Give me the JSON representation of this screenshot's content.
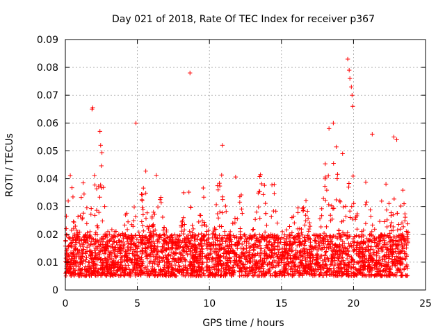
{
  "chart_data": {
    "type": "scatter",
    "title": "Day 021 of 2018, Rate Of TEC Index for receiver p367",
    "xlabel": "GPS time / hours",
    "ylabel": "ROTI / TECUs",
    "xlim": [
      0,
      25
    ],
    "ylim": [
      0,
      0.09
    ],
    "xticks": [
      0,
      5,
      10,
      15,
      20,
      25
    ],
    "xtick_labels": [
      "0",
      "5",
      "10",
      "15",
      "20",
      "25"
    ],
    "yticks": [
      0,
      0.01,
      0.02,
      0.03,
      0.04,
      0.05,
      0.06,
      0.07,
      0.08,
      0.09
    ],
    "ytick_labels": [
      "0",
      "0.01",
      "0.02",
      "0.03",
      "0.04",
      "0.05",
      "0.06",
      "0.07",
      "0.08",
      "0.09"
    ],
    "grid": true,
    "marker": "+",
    "series_color": "#ff0000",
    "x_data_range": [
      0,
      23.8
    ],
    "baseline_band": [
      0.005,
      0.02
    ],
    "activity_peaks": [
      {
        "x": 0.3,
        "peak": 0.044
      },
      {
        "x": 1.2,
        "peak": 0.041
      },
      {
        "x": 1.9,
        "peak": 0.045
      },
      {
        "x": 2.4,
        "peak": 0.057
      },
      {
        "x": 4.5,
        "peak": 0.047
      },
      {
        "x": 5.5,
        "peak": 0.046
      },
      {
        "x": 6.4,
        "peak": 0.045
      },
      {
        "x": 8.4,
        "peak": 0.044
      },
      {
        "x": 9.5,
        "peak": 0.04
      },
      {
        "x": 10.8,
        "peak": 0.052
      },
      {
        "x": 12.0,
        "peak": 0.048
      },
      {
        "x": 13.6,
        "peak": 0.05
      },
      {
        "x": 14.5,
        "peak": 0.043
      },
      {
        "x": 15.9,
        "peak": 0.041
      },
      {
        "x": 16.6,
        "peak": 0.035
      },
      {
        "x": 18.1,
        "peak": 0.053
      },
      {
        "x": 18.8,
        "peak": 0.055
      },
      {
        "x": 19.3,
        "peak": 0.051
      },
      {
        "x": 19.9,
        "peak": 0.048
      },
      {
        "x": 21.0,
        "peak": 0.045
      },
      {
        "x": 22.2,
        "peak": 0.044
      },
      {
        "x": 22.8,
        "peak": 0.035
      },
      {
        "x": 23.5,
        "peak": 0.038
      }
    ],
    "outliers": [
      {
        "x": 1.85,
        "y": 0.065
      },
      {
        "x": 1.9,
        "y": 0.0655
      },
      {
        "x": 2.4,
        "y": 0.057
      },
      {
        "x": 2.45,
        "y": 0.052
      },
      {
        "x": 4.9,
        "y": 0.06
      },
      {
        "x": 8.65,
        "y": 0.078
      },
      {
        "x": 19.6,
        "y": 0.083
      },
      {
        "x": 19.7,
        "y": 0.079
      },
      {
        "x": 19.75,
        "y": 0.076
      },
      {
        "x": 19.85,
        "y": 0.073
      },
      {
        "x": 19.9,
        "y": 0.07
      },
      {
        "x": 19.95,
        "y": 0.066
      },
      {
        "x": 18.3,
        "y": 0.058
      },
      {
        "x": 18.6,
        "y": 0.06
      },
      {
        "x": 21.3,
        "y": 0.056
      },
      {
        "x": 22.8,
        "y": 0.055
      },
      {
        "x": 23.0,
        "y": 0.054
      },
      {
        "x": 10.9,
        "y": 0.052
      }
    ]
  }
}
